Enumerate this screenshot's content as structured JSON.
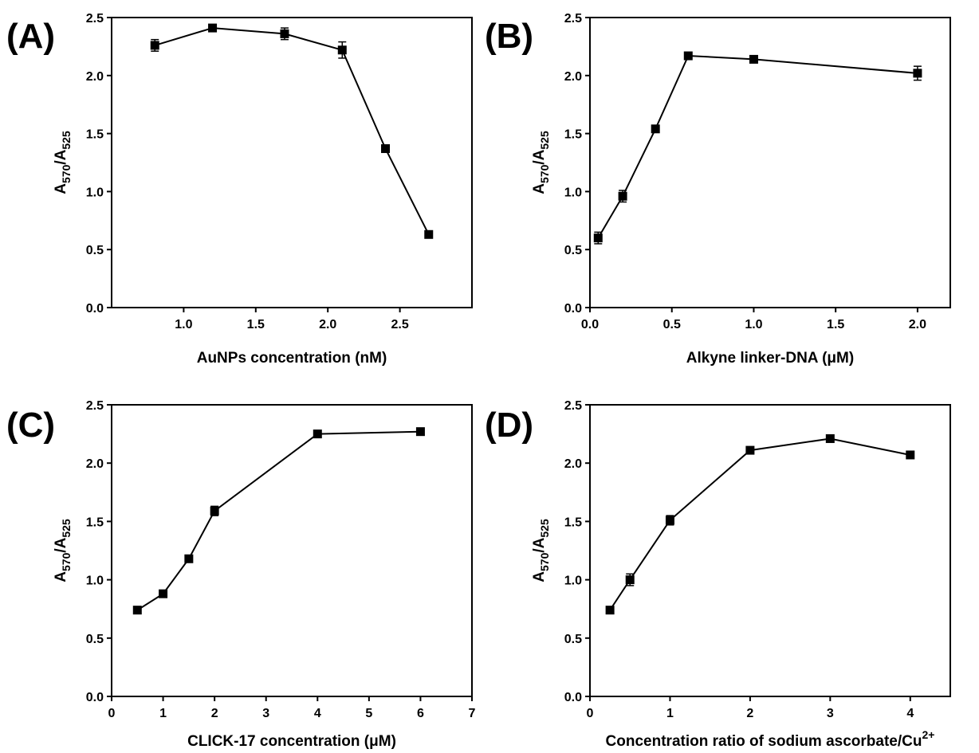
{
  "chart_data": [
    {
      "panel_label": "(A)",
      "type": "line",
      "xlabel": "AuNPs concentration (nM)",
      "ylabel": {
        "base": "A",
        "num_sub": "570",
        "sep": "/",
        "den_base": "A",
        "den_sub": "525"
      },
      "xlim": [
        0.5,
        3.0
      ],
      "ylim": [
        0.0,
        2.5
      ],
      "xticks": [
        "1.0",
        "1.5",
        "2.0",
        "2.5"
      ],
      "xtick_values": [
        1.0,
        1.5,
        2.0,
        2.5
      ],
      "yticks": [
        "0.0",
        "0.5",
        "1.0",
        "1.5",
        "2.0",
        "2.5"
      ],
      "ytick_values": [
        0.0,
        0.5,
        1.0,
        1.5,
        2.0,
        2.5
      ],
      "grid": false,
      "x": [
        0.8,
        1.2,
        1.7,
        2.1,
        2.4,
        2.7
      ],
      "y": [
        2.26,
        2.41,
        2.36,
        2.22,
        1.37,
        0.63
      ],
      "err": [
        0.05,
        0.02,
        0.05,
        0.07,
        0.03,
        0.02
      ]
    },
    {
      "panel_label": "(B)",
      "type": "line",
      "xlabel": "Alkyne linker-DNA (μM)",
      "ylabel": {
        "base": "A",
        "num_sub": "570",
        "sep": "/",
        "den_base": "A",
        "den_sub": "525"
      },
      "xlim": [
        0.0,
        2.2
      ],
      "ylim": [
        0.0,
        2.5
      ],
      "xticks": [
        "0.0",
        "0.5",
        "1.0",
        "1.5",
        "2.0"
      ],
      "xtick_values": [
        0.0,
        0.5,
        1.0,
        1.5,
        2.0
      ],
      "yticks": [
        "0.0",
        "0.5",
        "1.0",
        "1.5",
        "2.0",
        "2.5"
      ],
      "ytick_values": [
        0.0,
        0.5,
        1.0,
        1.5,
        2.0,
        2.5
      ],
      "grid": false,
      "x": [
        0.05,
        0.2,
        0.4,
        0.6,
        1.0,
        2.0
      ],
      "y": [
        0.6,
        0.96,
        1.54,
        2.17,
        2.14,
        2.02
      ],
      "err": [
        0.05,
        0.05,
        0.03,
        0.02,
        0.03,
        0.06
      ]
    },
    {
      "panel_label": "(C)",
      "type": "line",
      "xlabel": "CLICK-17 concentration (μM)",
      "ylabel": {
        "base": "A",
        "num_sub": "570",
        "sep": "/",
        "den_base": "A",
        "den_sub": "525"
      },
      "xlim": [
        0,
        7
      ],
      "ylim": [
        0.0,
        2.5
      ],
      "xticks": [
        "0",
        "1",
        "2",
        "3",
        "4",
        "5",
        "6",
        "7"
      ],
      "xtick_values": [
        0,
        1,
        2,
        3,
        4,
        5,
        6,
        7
      ],
      "yticks": [
        "0.0",
        "0.5",
        "1.0",
        "1.5",
        "2.0",
        "2.5"
      ],
      "ytick_values": [
        0.0,
        0.5,
        1.0,
        1.5,
        2.0,
        2.5
      ],
      "grid": false,
      "x": [
        0.5,
        1.0,
        1.5,
        2.0,
        4.0,
        6.0
      ],
      "y": [
        0.74,
        0.88,
        1.18,
        1.59,
        2.25,
        2.27
      ],
      "err": [
        0.02,
        0.02,
        0.02,
        0.04,
        0.03,
        0.02
      ]
    },
    {
      "panel_label": "(D)",
      "type": "line",
      "xlabel": "Concentration ratio of sodium ascorbate/Cu",
      "xlabel_sup": "2+",
      "ylabel": {
        "base": "A",
        "num_sub": "570",
        "sep": "/",
        "den_base": "A",
        "den_sub": "525"
      },
      "xlim": [
        0,
        4.5
      ],
      "ylim": [
        0.0,
        2.5
      ],
      "xticks": [
        "0",
        "1",
        "2",
        "3",
        "4"
      ],
      "xtick_values": [
        0,
        1,
        2,
        3,
        4
      ],
      "yticks": [
        "0.0",
        "0.5",
        "1.0",
        "1.5",
        "2.0",
        "2.5"
      ],
      "ytick_values": [
        0.0,
        0.5,
        1.0,
        1.5,
        2.0,
        2.5
      ],
      "grid": false,
      "x": [
        0.25,
        0.5,
        1.0,
        2.0,
        3.0,
        4.0
      ],
      "y": [
        0.74,
        1.0,
        1.51,
        2.11,
        2.21,
        2.07
      ],
      "err": [
        0.03,
        0.05,
        0.04,
        0.02,
        0.02,
        0.03
      ]
    }
  ],
  "colors": {
    "line": "#000000",
    "marker": "#000000",
    "axis": "#000000",
    "background": "#ffffff"
  }
}
